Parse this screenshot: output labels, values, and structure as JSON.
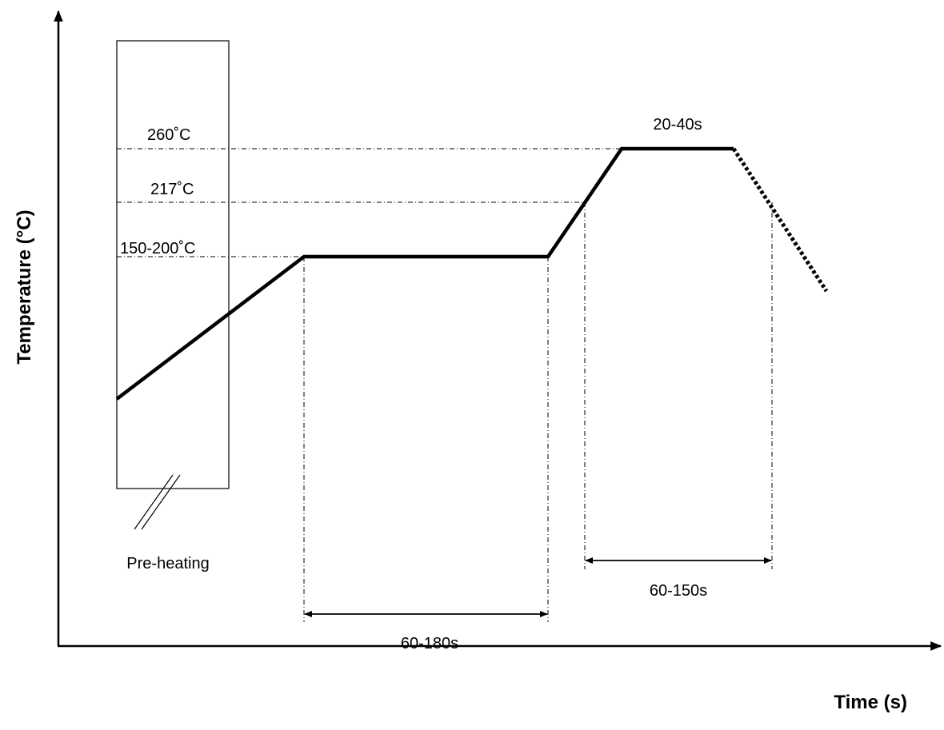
{
  "diagram": {
    "y_axis_label": "Temperature (°C)",
    "x_axis_label": "Time (s)",
    "temp_labels": {
      "peak": "260˚C",
      "liquidus": "217˚C",
      "soak": "150-200˚C"
    },
    "durations": {
      "peak": "20-40s",
      "soak": "60-180s",
      "above_liquidus": "60-150s"
    },
    "preheat_label": "Pre-heating",
    "colors": {
      "stroke": "#000000",
      "background": "#ffffff"
    }
  }
}
